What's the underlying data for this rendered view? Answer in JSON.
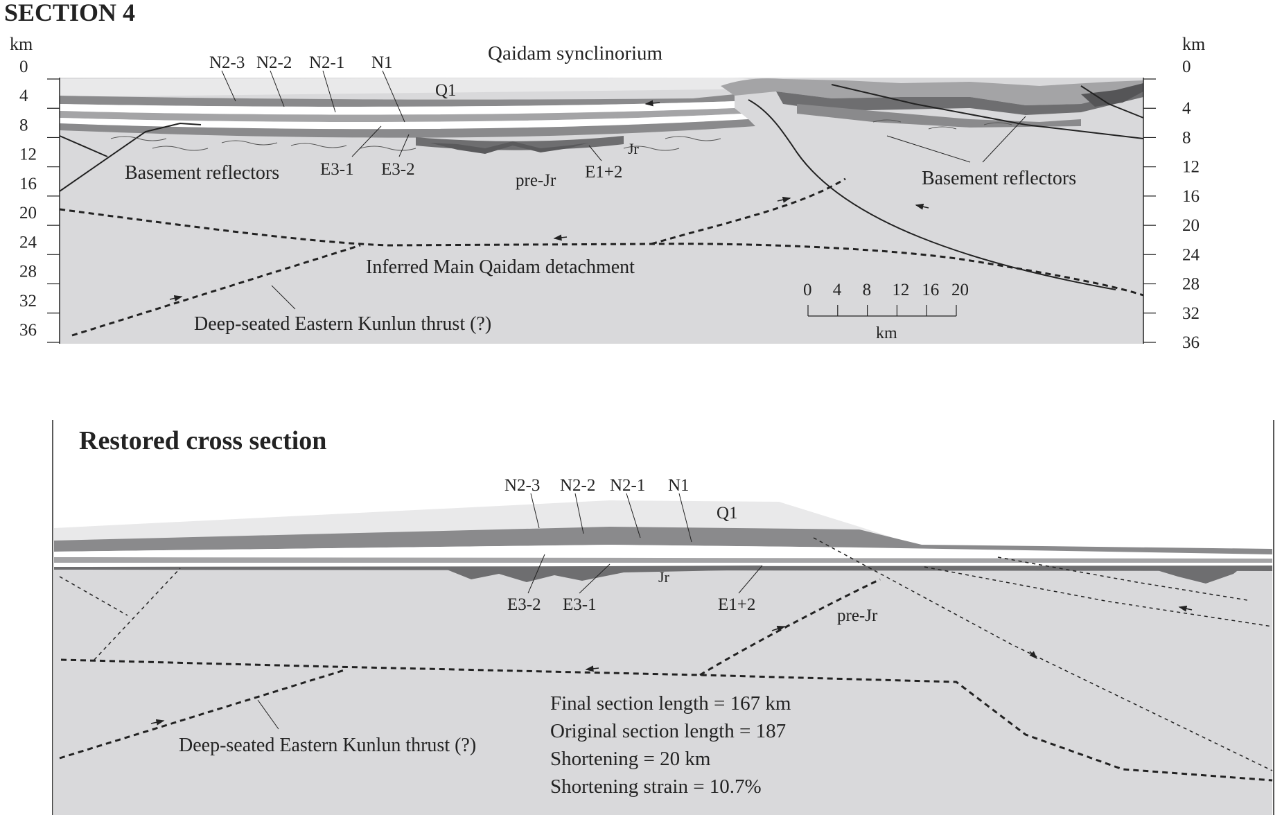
{
  "section_title": "SECTION 4",
  "top": {
    "depth_unit_left": "km",
    "depth_unit_right": "km",
    "depth_ticks": [
      "0",
      "4",
      "8",
      "12",
      "16",
      "20",
      "24",
      "28",
      "32",
      "36"
    ],
    "header_label": "Qaidam synclinorium",
    "unit_labels": {
      "n23": "N2-3",
      "n22": "N2-2",
      "n21": "N2-1",
      "n1": "N1",
      "q1": "Q1",
      "e31": "E3-1",
      "e32": "E3-2",
      "prejr": "pre-Jr",
      "e12": "E1+2",
      "jr": "Jr"
    },
    "basement_left": "Basement reflectors",
    "basement_right": "Basement reflectors",
    "detachment": "Inferred Main Qaidam detachment",
    "kunlun_thrust": "Deep-seated Eastern Kunlun thrust (?)",
    "scale_ticks": [
      "0",
      "4",
      "8",
      "12",
      "16",
      "20"
    ],
    "scale_unit": "km"
  },
  "restored": {
    "title": "Restored cross section",
    "unit_labels": {
      "n23": "N2-3",
      "n22": "N2-2",
      "n21": "N2-1",
      "n1": "N1",
      "q1": "Q1",
      "e32": "E3-2",
      "e31": "E3-1",
      "e12": "E1+2",
      "prejr": "pre-Jr",
      "jr": "Jr"
    },
    "kunlun_thrust": "Deep-seated Eastern Kunlun thrust (?)",
    "stats": [
      "Final section length = 167 km",
      "Original section length = 187",
      "Shortening = 20 km",
      "Shortening strain = 10.7%"
    ]
  },
  "colors": {
    "basement": "#d9d9db",
    "quaternary": "#e9e9ea",
    "mid_gray": "#a4a4a6",
    "dark_gray": "#6e6e70",
    "ink": "#222222"
  }
}
